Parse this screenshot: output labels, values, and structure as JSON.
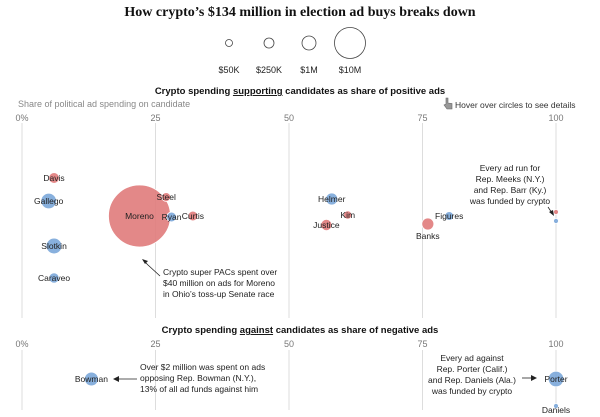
{
  "title": "How crypto’s $134 million in election ad buys breaks down",
  "colors": {
    "democrat": "#7ba7d9",
    "republican": "#e07b7b",
    "grid": "#dddddd",
    "size_legend": "#ffffff"
  },
  "size_legend": {
    "labels": [
      "$50K",
      "$250K",
      "$1M",
      "$10M"
    ],
    "values_usd": [
      50000,
      250000,
      1000000,
      10000000
    ]
  },
  "hint": {
    "text": "Hover over circles to see details",
    "icon": "pointer-hand-icon"
  },
  "chart_data": [
    {
      "type": "scatter",
      "title_parts": [
        "Crypto spending ",
        "supporting",
        " candidates as share of positive ads"
      ],
      "subtitle": "Share of political ad spending on candidate",
      "xticks": [
        "0%",
        "25",
        "50",
        "75",
        "100"
      ],
      "xlim": [
        0,
        100
      ],
      "points": [
        {
          "label": "Moreno",
          "x": 22,
          "party": "R",
          "usd": 40000000
        },
        {
          "label": "Davis",
          "x": 6,
          "party": "R",
          "usd": 1200000
        },
        {
          "label": "Gallego",
          "x": 5,
          "party": "D",
          "usd": 2500000
        },
        {
          "label": "Slotkin",
          "x": 6,
          "party": "D",
          "usd": 2600000
        },
        {
          "label": "Caraveo",
          "x": 6,
          "party": "D",
          "usd": 1100000
        },
        {
          "label": "Steel",
          "x": 27,
          "party": "R",
          "usd": 800000
        },
        {
          "label": "Ryan",
          "x": 28,
          "party": "D",
          "usd": 1000000
        },
        {
          "label": "Curtis",
          "x": 32,
          "party": "R",
          "usd": 1000000
        },
        {
          "label": "Helmer",
          "x": 58,
          "party": "D",
          "usd": 1500000
        },
        {
          "label": "Justice",
          "x": 57,
          "party": "R",
          "usd": 1300000
        },
        {
          "label": "Kim",
          "x": 61,
          "party": "R",
          "usd": 700000
        },
        {
          "label": "Figures",
          "x": 80,
          "party": "D",
          "usd": 800000
        },
        {
          "label": "Banks",
          "x": 76,
          "party": "R",
          "usd": 1500000
        },
        {
          "label": "",
          "x": 100,
          "party": "R",
          "usd": 40000
        },
        {
          "label": "",
          "x": 100,
          "party": "D",
          "usd": 30000
        }
      ],
      "annotations": [
        [
          "Crypto super PACs spent over",
          "$40 million on ads for Moreno",
          "in Ohio’s toss-up Senate race"
        ],
        [
          "Every ad run for",
          "Rep. Meeks (N.Y.)",
          "and Rep. Barr (Ky.)",
          "was funded by crypto"
        ]
      ]
    },
    {
      "type": "scatter",
      "title_parts": [
        "Crypto spending ",
        "against",
        " candidates as share of negative ads"
      ],
      "xticks": [
        "0%",
        "25",
        "50",
        "75",
        "100"
      ],
      "xlim": [
        0,
        100
      ],
      "points": [
        {
          "label": "Bowman",
          "x": 13,
          "party": "D",
          "usd": 2000000
        },
        {
          "label": "Porter",
          "x": 100,
          "party": "D",
          "usd": 2500000
        },
        {
          "label": "Daniels",
          "x": 100,
          "party": "D",
          "usd": 100000
        }
      ],
      "annotations": [
        [
          "Over $2 million was spent on ads",
          "opposing Rep. Bowman (N.Y.),",
          "13% of all ad funds against him"
        ],
        [
          "Every ad against",
          "Rep. Porter (Calif.)",
          "and Rep. Daniels (Ala.)",
          "was funded by crypto"
        ]
      ]
    }
  ]
}
